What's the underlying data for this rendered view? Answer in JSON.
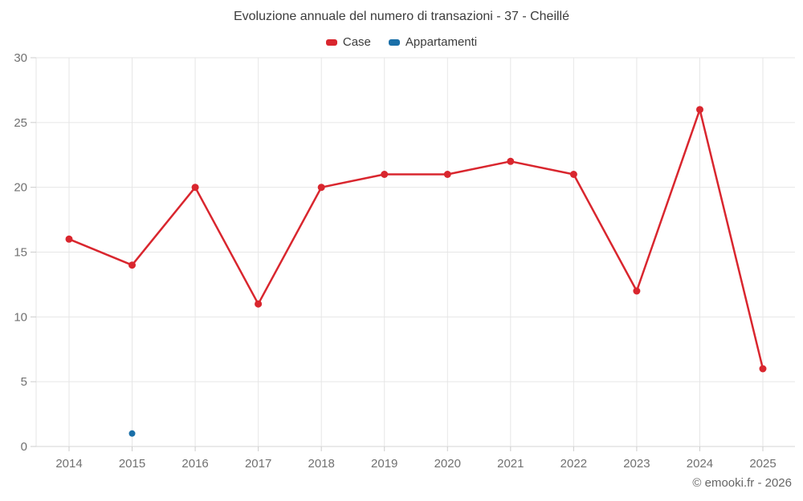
{
  "title": "Evoluzione annuale del numero di transazioni - 37 - Cheillé",
  "credit": "© emooki.fr - 2026",
  "colors": {
    "case_red": "#d9262e",
    "appartamenti_blue": "#1a6fa8",
    "grid": "#e6e6e6",
    "axis_line": "#d4d4d4",
    "tick": "#cccccc",
    "axis_label": "#707070",
    "title_text": "#3c3c3c",
    "background": "#ffffff"
  },
  "chart_data": {
    "type": "line",
    "title": "Evoluzione annuale del numero di transazioni - 37 - Cheillé",
    "categories": [
      "2014",
      "2015",
      "2016",
      "2017",
      "2018",
      "2019",
      "2020",
      "2021",
      "2022",
      "2023",
      "2024",
      "2025"
    ],
    "series": [
      {
        "name": "Case",
        "color": "#d9262e",
        "marker_radius": 4.5,
        "values": [
          16,
          14,
          20,
          11,
          20,
          21,
          21,
          22,
          21,
          12,
          26,
          6
        ]
      },
      {
        "name": "Appartamenti",
        "color": "#1a6fa8",
        "marker_radius": 4,
        "values": [
          null,
          1,
          null,
          null,
          null,
          null,
          null,
          null,
          null,
          null,
          null,
          null
        ]
      }
    ],
    "xlabel": "",
    "ylabel": "",
    "ylim": [
      0,
      30
    ],
    "yticks": [
      0,
      5,
      10,
      15,
      20,
      25,
      30
    ],
    "grid": true,
    "legend_position": "top"
  }
}
